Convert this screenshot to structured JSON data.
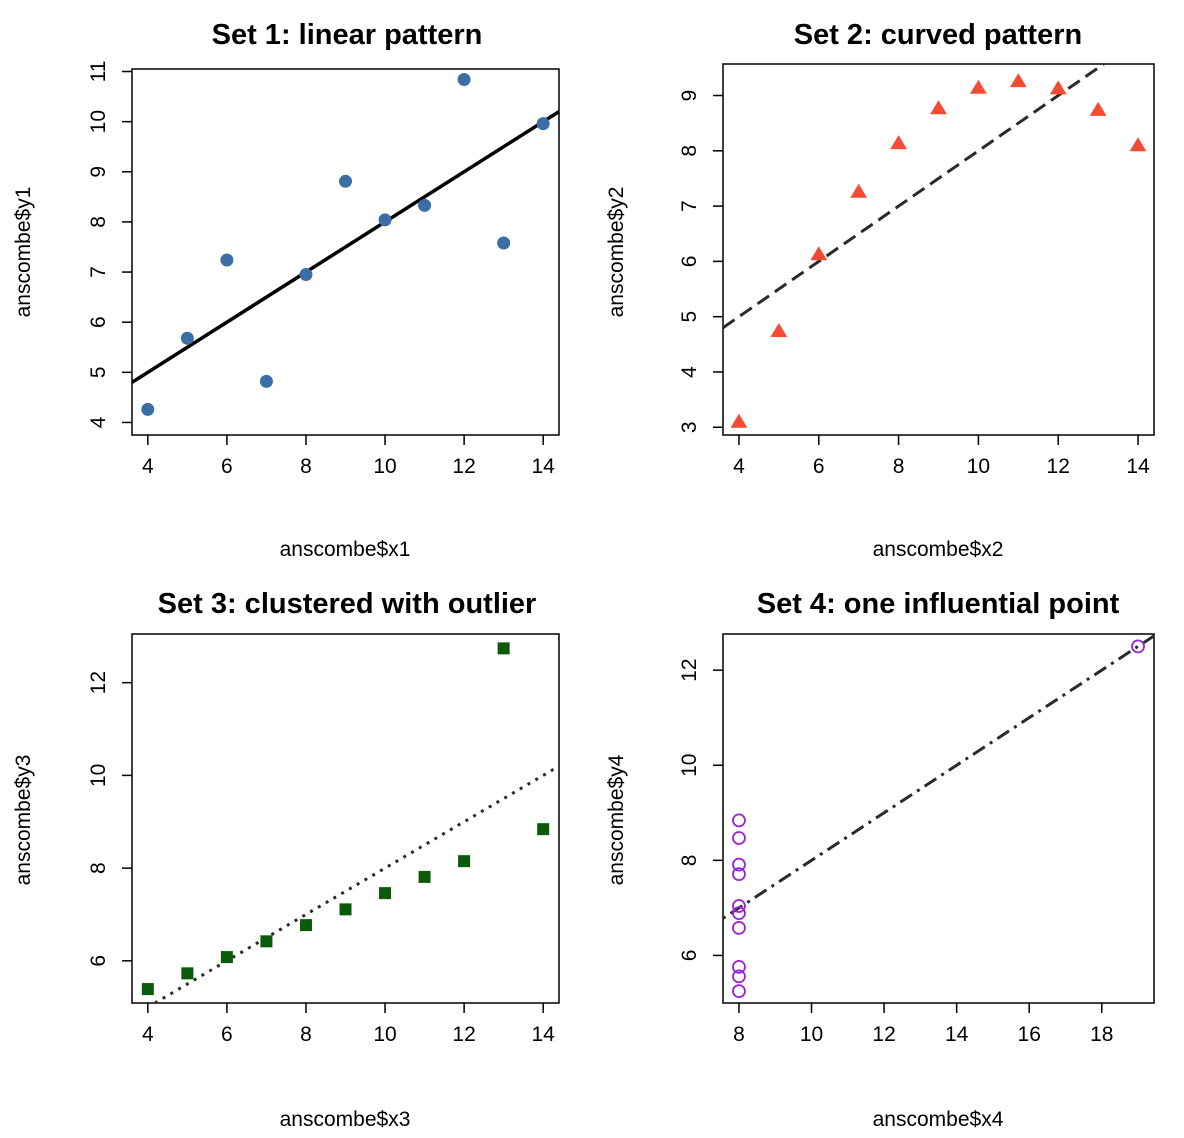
{
  "chart_data": [
    {
      "type": "scatter",
      "title": "Set 1: linear pattern",
      "xlabel": "anscombe$x1",
      "ylabel": "anscombe$y1",
      "xlim": [
        3.6,
        14.4
      ],
      "ylim": [
        3.75,
        11.05
      ],
      "xticks": [
        4,
        6,
        8,
        10,
        12,
        14
      ],
      "yticks": [
        4,
        5,
        6,
        7,
        8,
        9,
        10,
        11
      ],
      "x": [
        10,
        8,
        13,
        9,
        11,
        14,
        6,
        4,
        12,
        7,
        5
      ],
      "y": [
        8.04,
        6.95,
        7.58,
        8.81,
        8.33,
        9.96,
        7.24,
        4.26,
        10.84,
        4.82,
        5.68
      ],
      "marker": "filled-circle",
      "color": "#3a6ea5",
      "fit": {
        "intercept": 3.0,
        "slope": 0.5,
        "style": "solid",
        "color": "#000000"
      }
    },
    {
      "type": "scatter",
      "title": "Set 2: curved pattern",
      "xlabel": "anscombe$x2",
      "ylabel": "anscombe$y2",
      "xlim": [
        3.6,
        14.4
      ],
      "ylim": [
        2.86,
        9.57
      ],
      "xticks": [
        4,
        6,
        8,
        10,
        12,
        14
      ],
      "yticks": [
        3,
        4,
        5,
        6,
        7,
        8,
        9
      ],
      "x": [
        10,
        8,
        13,
        9,
        11,
        14,
        6,
        4,
        12,
        7,
        5
      ],
      "y": [
        9.14,
        8.14,
        8.74,
        8.77,
        9.26,
        8.1,
        6.13,
        3.1,
        9.13,
        7.26,
        4.74
      ],
      "marker": "filled-triangle",
      "color": "#f44b35",
      "fit": {
        "intercept": 3.0,
        "slope": 0.5,
        "style": "dashed",
        "color": "#2a2a2a"
      }
    },
    {
      "type": "scatter",
      "title": "Set 3: clustered with outlier",
      "xlabel": "anscombe$x3",
      "ylabel": "anscombe$y3",
      "xlim": [
        3.6,
        14.4
      ],
      "ylim": [
        5.09,
        13.05
      ],
      "xticks": [
        4,
        6,
        8,
        10,
        12,
        14
      ],
      "yticks": [
        6,
        8,
        10,
        12
      ],
      "x": [
        10,
        8,
        13,
        9,
        11,
        14,
        6,
        4,
        12,
        7,
        5
      ],
      "y": [
        7.46,
        6.77,
        12.74,
        7.11,
        7.81,
        8.84,
        6.08,
        5.39,
        8.15,
        6.42,
        5.73
      ],
      "marker": "filled-square",
      "color": "#0a5a0a",
      "fit": {
        "intercept": 3.0,
        "slope": 0.5,
        "style": "dotted",
        "color": "#2a2a2a"
      }
    },
    {
      "type": "scatter",
      "title": "Set 4: one influential point",
      "xlabel": "anscombe$x4",
      "ylabel": "anscombe$y4",
      "xlim": [
        7.56,
        19.44
      ],
      "ylim": [
        5.0,
        12.76
      ],
      "xticks": [
        8,
        10,
        12,
        14,
        16,
        18
      ],
      "yticks": [
        6,
        8,
        10,
        12
      ],
      "x": [
        8,
        8,
        8,
        8,
        8,
        8,
        8,
        19,
        8,
        8,
        8
      ],
      "y": [
        6.58,
        5.76,
        7.71,
        8.84,
        8.47,
        7.04,
        5.25,
        12.5,
        5.56,
        7.91,
        6.89
      ],
      "marker": "open-circle",
      "color": "#9a22d8",
      "fit": {
        "intercept": 3.0,
        "slope": 0.5,
        "style": "dotdash",
        "color": "#2a2a2a"
      }
    }
  ]
}
